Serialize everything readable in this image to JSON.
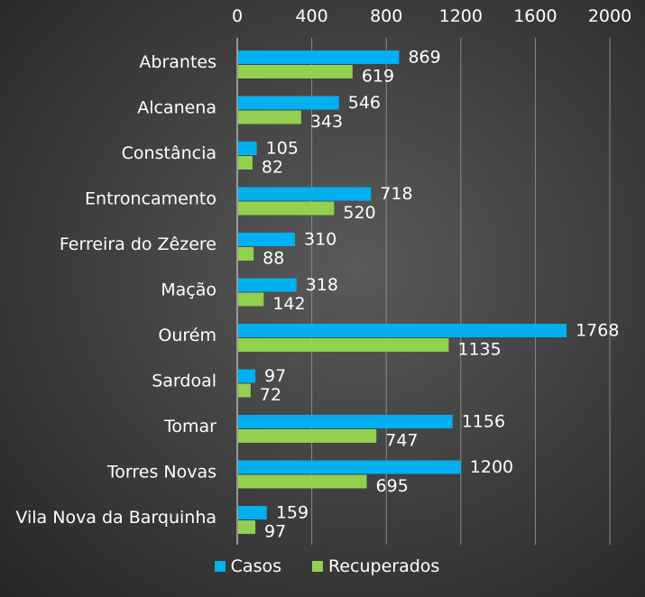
{
  "chart_data": {
    "type": "bar",
    "orientation": "horizontal",
    "categories": [
      "Abrantes",
      "Alcanena",
      "Constância",
      "Entroncamento",
      "Ferreira do Zêzere",
      "Mação",
      "Ourém",
      "Sardoal",
      "Tomar",
      "Torres Novas",
      "Vila Nova da Barquinha"
    ],
    "series": [
      {
        "name": "Casos",
        "color": "#00b0f0",
        "values": [
          869,
          546,
          105,
          718,
          310,
          318,
          1768,
          97,
          1156,
          1200,
          159
        ]
      },
      {
        "name": "Recuperados",
        "color": "#92d050",
        "values": [
          619,
          343,
          82,
          520,
          88,
          142,
          1135,
          72,
          747,
          695,
          97
        ]
      }
    ],
    "xlim": [
      0,
      2000
    ],
    "xticks": [
      0,
      400,
      800,
      1200,
      1600,
      2000
    ],
    "xaxis_position": "top",
    "grid": true,
    "legend_position": "bottom",
    "data_labels": true
  }
}
